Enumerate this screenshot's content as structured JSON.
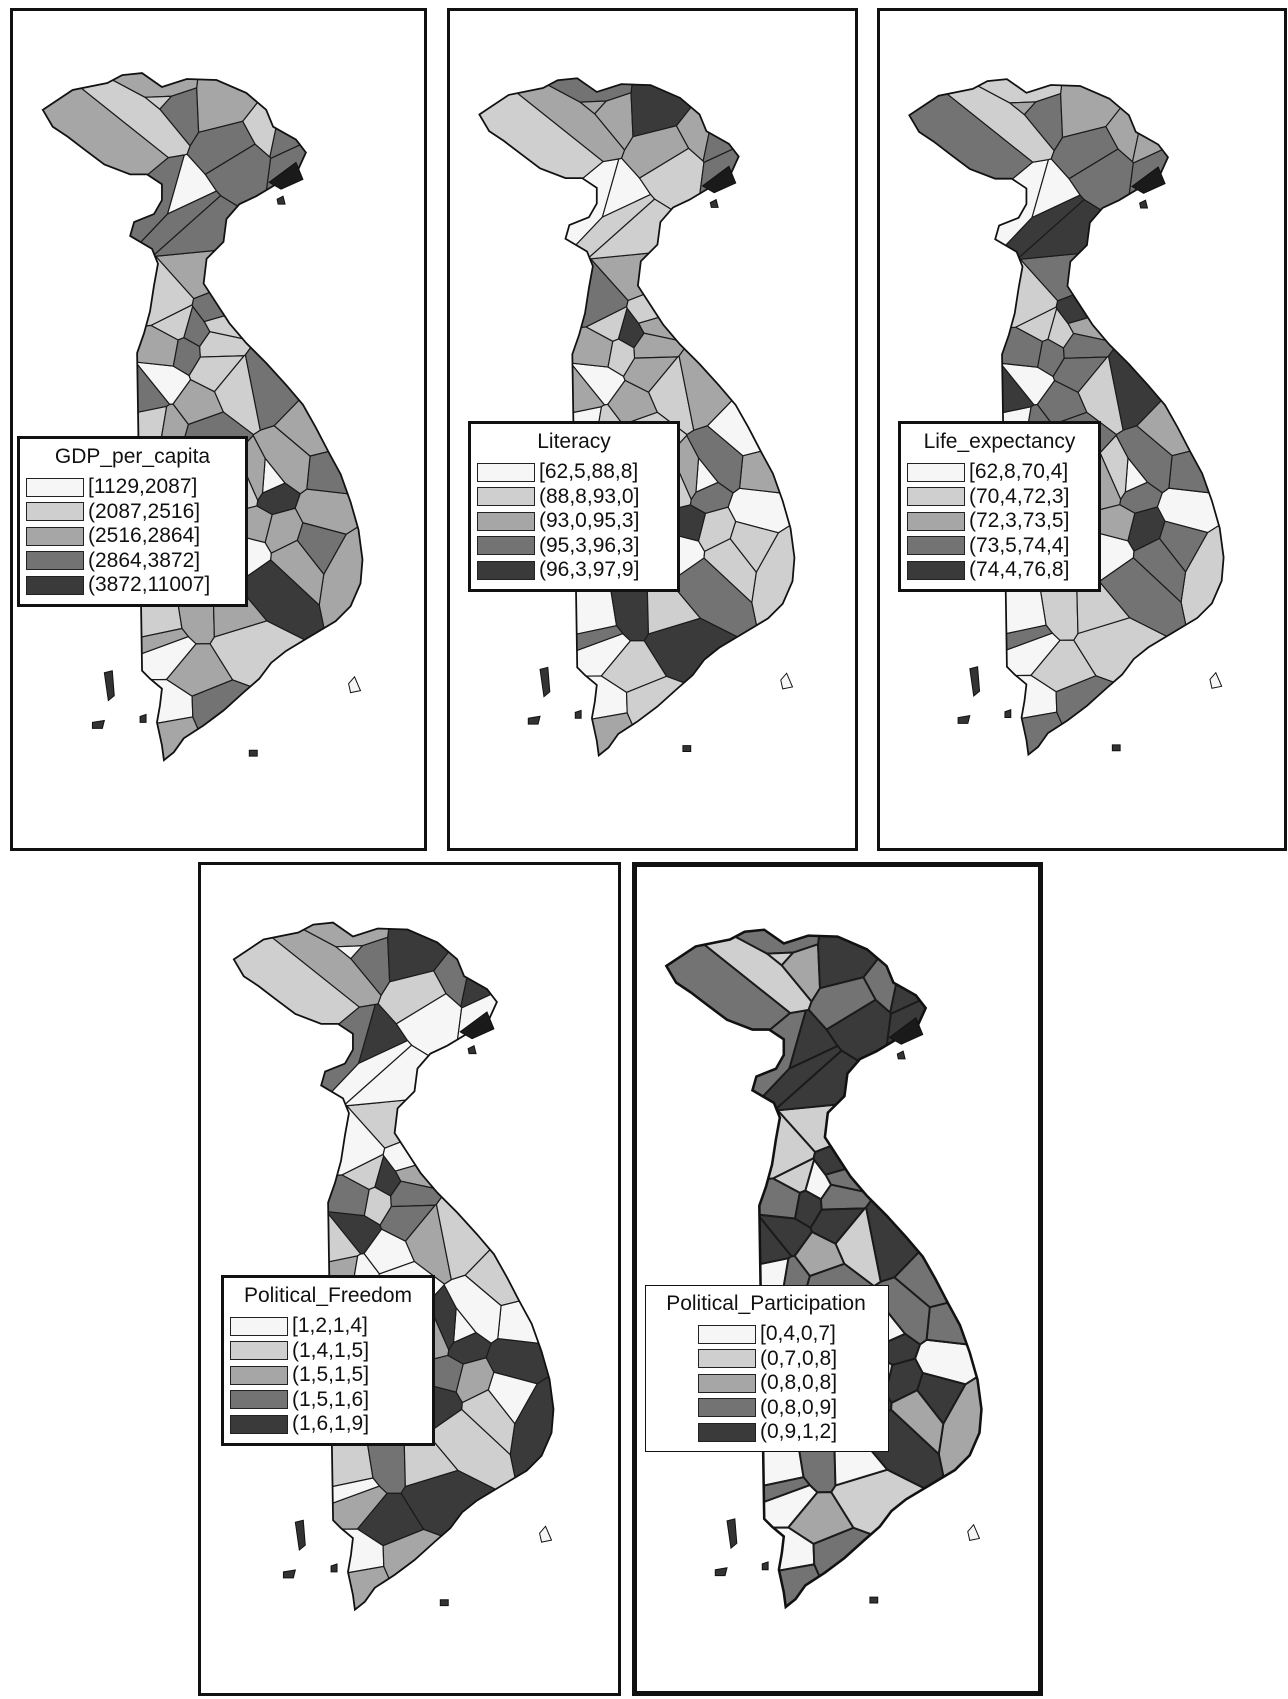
{
  "palette": [
    "#f6f6f6",
    "#cfcfcf",
    "#a6a6a6",
    "#737373",
    "#3a3a3a"
  ],
  "panels": [
    {
      "title": "GDP_per_capita",
      "classes": [
        "[1129,2087]",
        "(2087,2516]",
        "(2516,2864]",
        "(2864,3872]",
        "(3872,11007]"
      ],
      "region_classes": [
        1,
        3,
        2,
        0,
        1,
        4,
        3,
        1,
        0,
        1,
        2,
        1,
        0,
        0,
        1,
        0,
        1,
        2,
        1,
        2,
        3,
        2,
        1,
        1,
        2,
        3,
        2,
        1,
        2,
        3,
        1,
        2,
        0,
        3,
        2,
        2,
        4,
        3,
        3,
        2,
        3,
        3,
        3,
        3,
        2,
        3,
        3,
        2,
        3,
        3,
        3,
        2,
        3,
        2,
        3,
        2,
        2,
        2,
        1,
        2
      ]
    },
    {
      "title": "Literacy",
      "classes": [
        "[62,5,88,8]",
        "(88,8,93,0]",
        "(93,0,95,3]",
        "(95,3,96,3]",
        "(96,3,97,9]"
      ],
      "region_classes": [
        0,
        0,
        2,
        0,
        2,
        3,
        2,
        1,
        0,
        0,
        2,
        2,
        0,
        0,
        2,
        0,
        2,
        4,
        4,
        4,
        3,
        4,
        2,
        1,
        1,
        4,
        2,
        3,
        1,
        4,
        1,
        0,
        0,
        1,
        1,
        3,
        3,
        1,
        1,
        2,
        2,
        1,
        1,
        3,
        0,
        1,
        2,
        1,
        1,
        2,
        1,
        1,
        2,
        1,
        1,
        1,
        2,
        3,
        2,
        3
      ]
    },
    {
      "title": "Life_expectancy",
      "classes": [
        "[62,8,70,4]",
        "(70,4,72,3]",
        "(72,3,73,5]",
        "(73,5,74,4]",
        "(74,4,76,8]"
      ],
      "region_classes": [
        0,
        0,
        3,
        0,
        2,
        3,
        3,
        2,
        0,
        0,
        3,
        2,
        0,
        0,
        3,
        0,
        3,
        2,
        1,
        1,
        2,
        2,
        1,
        1,
        1,
        1,
        1,
        1,
        1,
        1,
        1,
        0,
        0,
        1,
        1,
        1,
        3,
        3,
        3,
        3,
        3,
        3,
        4,
        3,
        2,
        4,
        4,
        3,
        4,
        4,
        3,
        3,
        3,
        4,
        3,
        3,
        3,
        3,
        2,
        3
      ]
    },
    {
      "title": "Political_Freedom",
      "classes": [
        "[1,2,1,4]",
        "(1,4,1,5]",
        "(1,5,1,5]",
        "(1,5,1,6]",
        "(1,6,1,9]"
      ],
      "region_classes": [
        2,
        3,
        1,
        4,
        2,
        4,
        3,
        2,
        4,
        1,
        3,
        3,
        0,
        4,
        3,
        2,
        3,
        3,
        4,
        3,
        4,
        4,
        2,
        1,
        4,
        4,
        4,
        0,
        4,
        4,
        2,
        4,
        0,
        3,
        1,
        2,
        1,
        1,
        0,
        2,
        1,
        0,
        0,
        0,
        1,
        0,
        1,
        0,
        0,
        1,
        2,
        1,
        0,
        2,
        0,
        1,
        0,
        0,
        0,
        0
      ]
    },
    {
      "title": "Political_Participation",
      "classes": [
        "[0,4,0,7]",
        "(0,7,0,8]",
        "(0,8,0,8]",
        "(0,8,0,9]",
        "(0,9,1,2]"
      ],
      "region_classes": [
        0,
        3,
        1,
        4,
        3,
        4,
        2,
        4,
        4,
        0,
        3,
        3,
        0,
        4,
        3,
        0,
        4,
        1,
        1,
        3,
        4,
        4,
        1,
        1,
        2,
        0,
        1,
        1,
        2,
        0,
        1,
        0,
        0,
        1,
        0,
        3,
        4,
        4,
        4,
        3,
        3,
        4,
        4,
        4,
        3,
        4,
        4,
        3,
        4,
        4,
        3,
        3,
        3,
        4,
        3,
        2,
        2,
        3,
        1,
        3
      ]
    }
  ]
}
